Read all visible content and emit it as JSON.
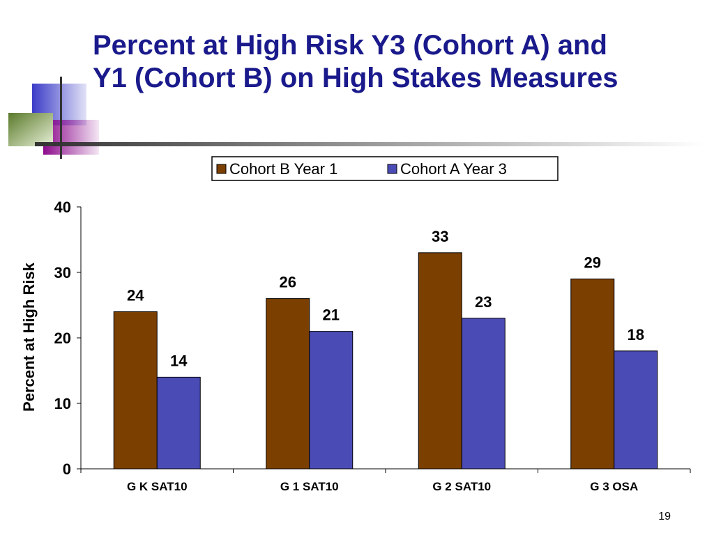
{
  "slide": {
    "title_lines": [
      "Percent at High Risk Y3 (Cohort A) and",
      "Y1 (Cohort B) on High Stakes Measures"
    ],
    "page_number": "19"
  },
  "chart_data": {
    "type": "bar",
    "title": "",
    "xlabel": "",
    "ylabel": "Percent at High Risk",
    "ylim": [
      0,
      40
    ],
    "yticks": [
      0,
      10,
      20,
      30,
      40
    ],
    "categories": [
      "G K SAT10",
      "G 1 SAT10",
      "G 2 SAT10",
      "G 3 OSA"
    ],
    "series": [
      {
        "name": "Cohort B Year 1",
        "values": [
          24,
          26,
          33,
          29
        ],
        "color": "#7b3f00"
      },
      {
        "name": "Cohort A Year 3",
        "values": [
          14,
          21,
          23,
          18
        ],
        "color": "#4b4bb5"
      }
    ],
    "legend": "top",
    "grid": false
  }
}
